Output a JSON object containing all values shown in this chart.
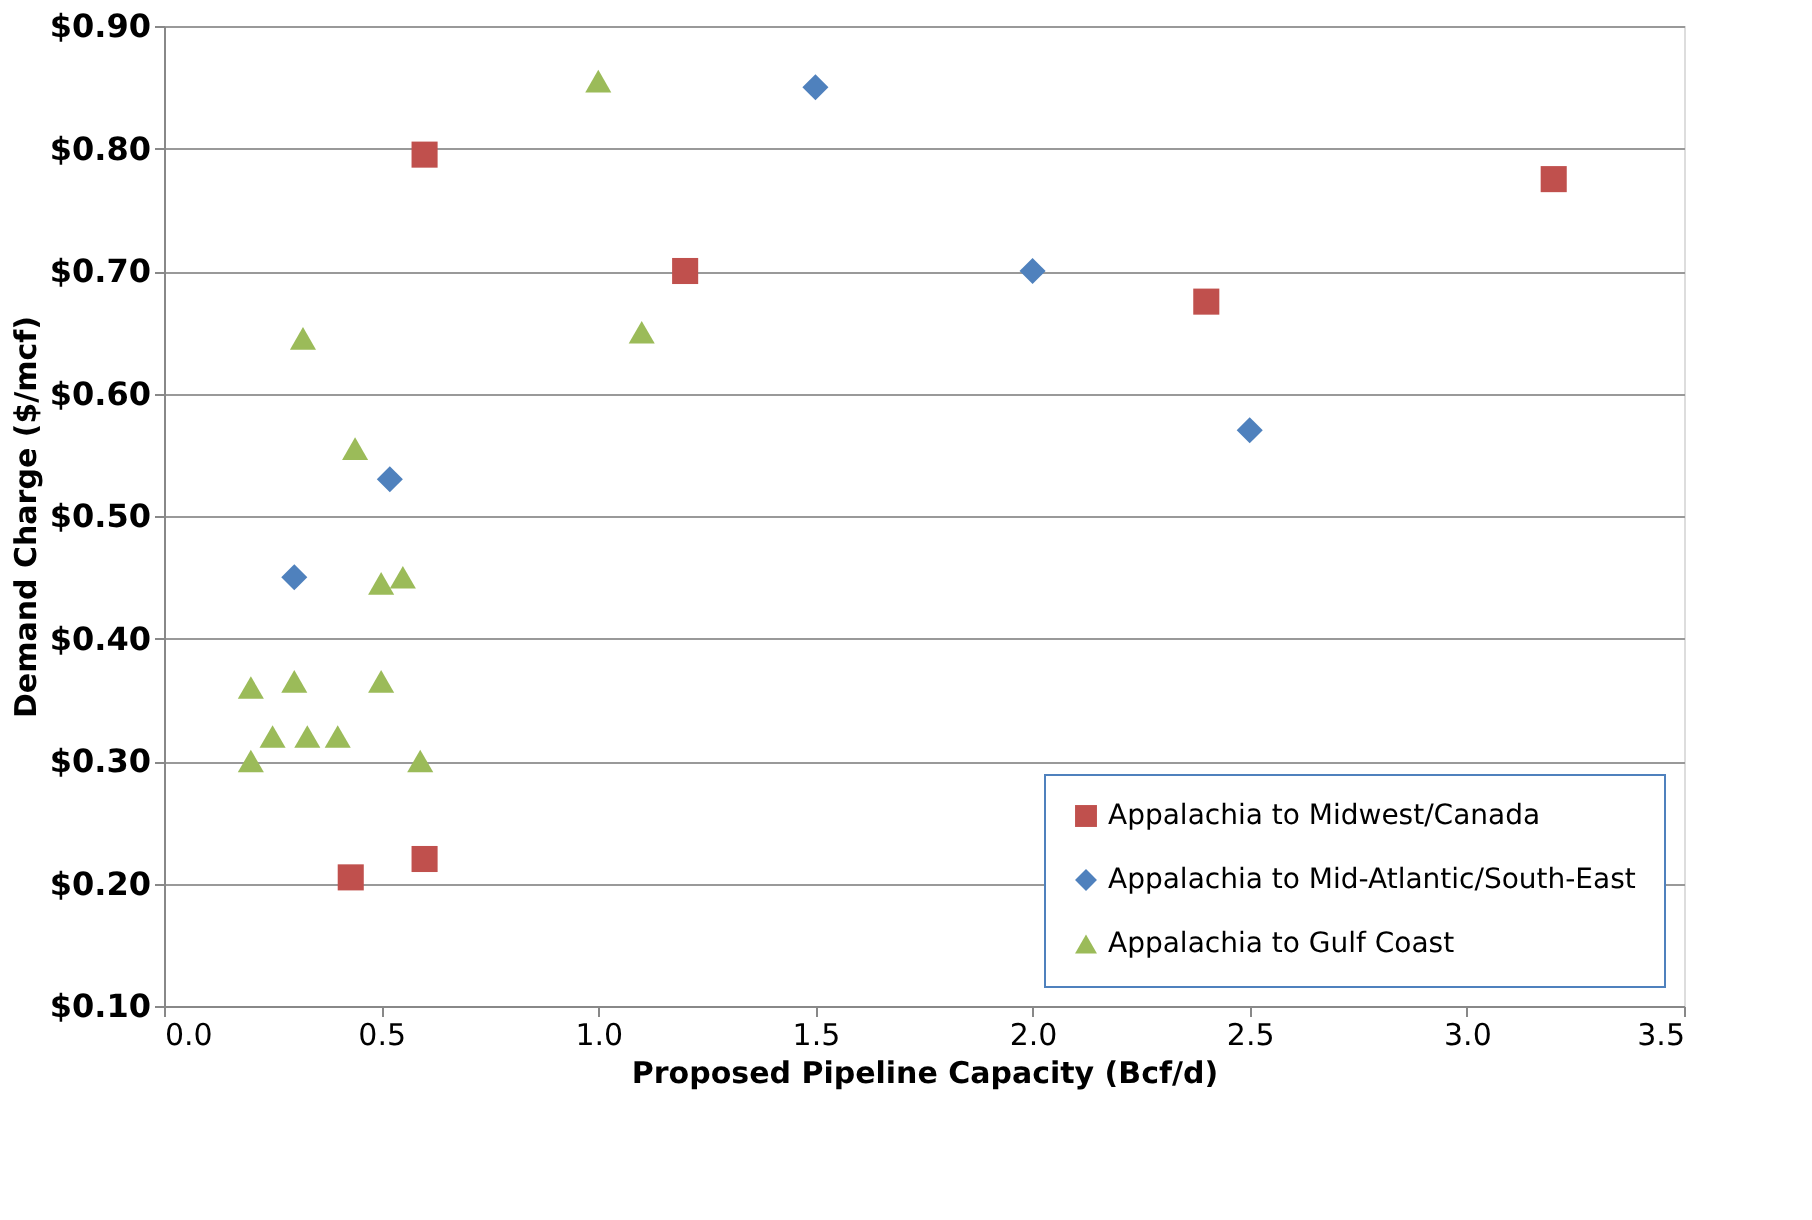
{
  "chart_data": {
    "type": "scatter",
    "xlabel": "Proposed Pipeline Capacity (Bcf/d)",
    "ylabel": "Demand Charge ($/mcf)",
    "xlim": [
      0,
      3.5
    ],
    "ylim": [
      0.1,
      0.9
    ],
    "xticks": [
      {
        "value": 0,
        "label": "0.0"
      },
      {
        "value": 0.5,
        "label": "0.5"
      },
      {
        "value": 1,
        "label": "1.0"
      },
      {
        "value": 1.5,
        "label": "1.5"
      },
      {
        "value": 2,
        "label": "2.0"
      },
      {
        "value": 2.5,
        "label": "2.5"
      },
      {
        "value": 3,
        "label": "3.0"
      },
      {
        "value": 3.5,
        "label": "3.5"
      }
    ],
    "yticks": [
      {
        "value": 0.1,
        "label": "$0.10"
      },
      {
        "value": 0.2,
        "label": "$0.20"
      },
      {
        "value": 0.3,
        "label": "$0.30"
      },
      {
        "value": 0.4,
        "label": "$0.40"
      },
      {
        "value": 0.5,
        "label": "$0.50"
      },
      {
        "value": 0.6,
        "label": "$0.60"
      },
      {
        "value": 0.7,
        "label": "$0.70"
      },
      {
        "value": 0.8,
        "label": "$0.80"
      },
      {
        "value": 0.9,
        "label": "$0.90"
      }
    ],
    "grid": "y",
    "legend": "bottom right",
    "series": [
      {
        "name": "Appalachia to Midwest/Canada",
        "color": "#c0504d",
        "marker": "square",
        "x": [
          0.6,
          1.2,
          2.4,
          3.2,
          0.43,
          0.6
        ],
        "values": [
          0.795,
          0.7,
          0.675,
          0.775,
          0.205,
          0.22
        ]
      },
      {
        "name": "Appalachia to Mid-Atlantic/South-East",
        "color": "#4f81bd",
        "marker": "diamond",
        "x": [
          1.5,
          2.0,
          2.5,
          0.52,
          0.3
        ],
        "values": [
          0.85,
          0.7,
          0.57,
          0.53,
          0.45
        ]
      },
      {
        "name": "Appalachia to Gulf Coast",
        "color": "#9bbb59",
        "marker": "triangle",
        "x": [
          1.0,
          1.1,
          0.32,
          0.44,
          0.5,
          0.55,
          0.2,
          0.3,
          0.5,
          0.25,
          0.33,
          0.4,
          0.2,
          0.59
        ],
        "values": [
          0.855,
          0.65,
          0.645,
          0.555,
          0.445,
          0.45,
          0.36,
          0.365,
          0.365,
          0.32,
          0.32,
          0.32,
          0.3,
          0.3
        ]
      }
    ]
  }
}
